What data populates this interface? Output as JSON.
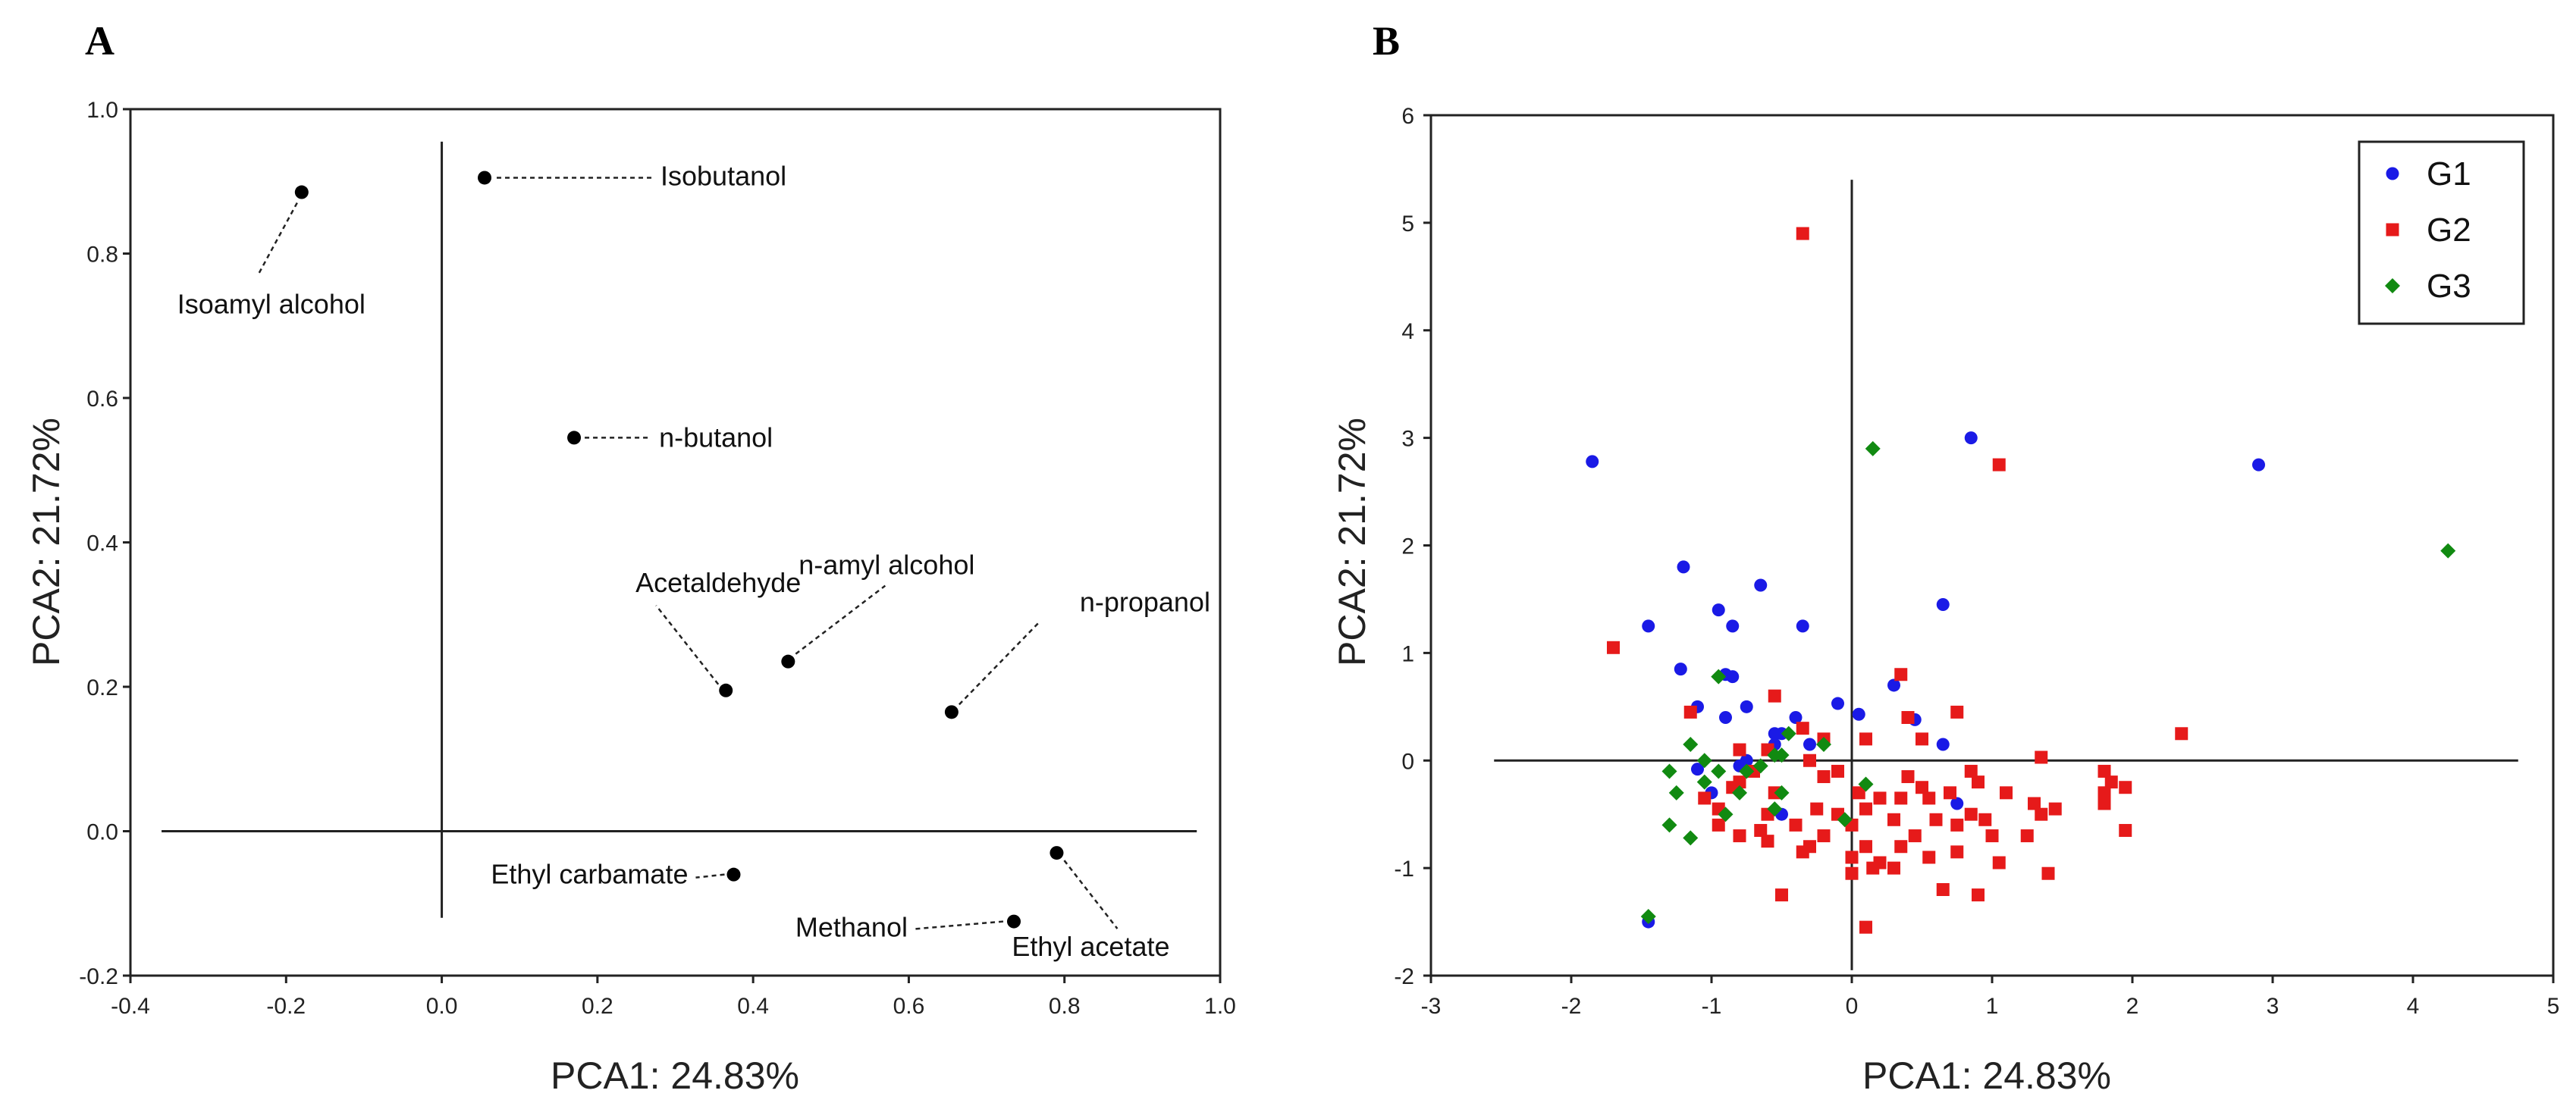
{
  "chart_data": [
    {
      "type": "scatter",
      "panel": "A",
      "xlabel": "PCA1: 24.83%",
      "ylabel": "PCA2: 21.72%",
      "xlim": [
        -0.4,
        1.0
      ],
      "ylim": [
        -0.2,
        1.0
      ],
      "xticks": [
        "-0.4",
        "-0.2",
        "0.0",
        "0.2",
        "0.4",
        "0.6",
        "0.8",
        "1.0"
      ],
      "yticks": [
        "-0.2",
        "0.0",
        "0.2",
        "0.4",
        "0.6",
        "0.8",
        "1.0"
      ],
      "points": [
        {
          "label": "Isoamyl alcohol",
          "x": -0.18,
          "y": 0.885
        },
        {
          "label": "Isobutanol",
          "x": 0.055,
          "y": 0.905
        },
        {
          "label": "n-butanol",
          "x": 0.17,
          "y": 0.545
        },
        {
          "label": "Acetaldehyde",
          "x": 0.365,
          "y": 0.195
        },
        {
          "label": "n-amyl alcohol",
          "x": 0.445,
          "y": 0.235
        },
        {
          "label": "n-propanol",
          "x": 0.655,
          "y": 0.165
        },
        {
          "label": "Ethyl carbamate",
          "x": 0.375,
          "y": -0.06
        },
        {
          "label": "Ethyl acetate",
          "x": 0.79,
          "y": -0.03
        },
        {
          "label": "Methanol",
          "x": 0.735,
          "y": -0.125
        }
      ]
    },
    {
      "type": "scatter",
      "panel": "B",
      "xlabel": "PCA1: 24.83%",
      "ylabel": "PCA2: 21.72%",
      "xlim": [
        -3,
        5
      ],
      "ylim": [
        -2,
        6
      ],
      "xticks": [
        "-3",
        "-2",
        "-1",
        "0",
        "1",
        "2",
        "3",
        "4",
        "5"
      ],
      "yticks": [
        "-2",
        "-1",
        "0",
        "1",
        "2",
        "3",
        "4",
        "5",
        "6"
      ],
      "legend_position": "top-right",
      "series": [
        {
          "name": "G1",
          "color": "#1a1ae6",
          "marker": "circle",
          "points": [
            [
              -1.85,
              2.78
            ],
            [
              -1.45,
              1.25
            ],
            [
              -1.2,
              1.8
            ],
            [
              -0.95,
              1.4
            ],
            [
              -0.65,
              1.63
            ],
            [
              -0.85,
              1.25
            ],
            [
              -1.22,
              0.85
            ],
            [
              -1.1,
              0.5
            ],
            [
              -0.9,
              0.8
            ],
            [
              -0.85,
              0.78
            ],
            [
              -0.35,
              1.25
            ],
            [
              -0.75,
              0.5
            ],
            [
              -0.9,
              0.4
            ],
            [
              -0.55,
              0.25
            ],
            [
              -0.5,
              0.25
            ],
            [
              -0.4,
              0.4
            ],
            [
              -0.1,
              0.53
            ],
            [
              0.05,
              0.43
            ],
            [
              -0.3,
              0.15
            ],
            [
              -0.75,
              0.0
            ],
            [
              -1.0,
              -0.3
            ],
            [
              -1.1,
              -0.08
            ],
            [
              -0.5,
              -0.5
            ],
            [
              0.3,
              0.7
            ],
            [
              0.45,
              0.38
            ],
            [
              0.65,
              1.45
            ],
            [
              0.65,
              0.15
            ],
            [
              0.85,
              3.0
            ],
            [
              0.75,
              -0.4
            ],
            [
              2.9,
              2.75
            ],
            [
              -1.45,
              -1.5
            ],
            [
              -0.55,
              0.15
            ],
            [
              -0.8,
              -0.05
            ]
          ]
        },
        {
          "name": "G2",
          "color": "#e61a1a",
          "marker": "square",
          "points": [
            [
              -0.35,
              4.9
            ],
            [
              1.05,
              2.75
            ],
            [
              -1.7,
              1.05
            ],
            [
              -0.55,
              0.6
            ],
            [
              0.35,
              0.8
            ],
            [
              0.75,
              0.45
            ],
            [
              2.35,
              0.25
            ],
            [
              -1.15,
              0.45
            ],
            [
              -0.35,
              0.3
            ],
            [
              -0.2,
              0.2
            ],
            [
              0.1,
              0.2
            ],
            [
              0.4,
              0.4
            ],
            [
              0.5,
              0.2
            ],
            [
              -0.8,
              0.1
            ],
            [
              -0.6,
              0.1
            ],
            [
              -0.3,
              0.0
            ],
            [
              1.35,
              0.03
            ],
            [
              -1.05,
              -0.35
            ],
            [
              -0.95,
              -0.45
            ],
            [
              -0.8,
              -0.2
            ],
            [
              -0.7,
              -0.1
            ],
            [
              -0.55,
              -0.3
            ],
            [
              -0.2,
              -0.15
            ],
            [
              -0.1,
              -0.1
            ],
            [
              0.05,
              -0.3
            ],
            [
              0.2,
              -0.35
            ],
            [
              0.35,
              -0.35
            ],
            [
              0.5,
              -0.25
            ],
            [
              0.7,
              -0.3
            ],
            [
              0.85,
              -0.1
            ],
            [
              0.9,
              -0.2
            ],
            [
              1.1,
              -0.3
            ],
            [
              1.3,
              -0.4
            ],
            [
              1.35,
              -0.5
            ],
            [
              1.8,
              -0.1
            ],
            [
              1.85,
              -0.2
            ],
            [
              1.8,
              -0.3
            ],
            [
              1.8,
              -0.4
            ],
            [
              1.95,
              -0.25
            ],
            [
              -0.95,
              -0.6
            ],
            [
              -0.8,
              -0.7
            ],
            [
              -0.6,
              -0.5
            ],
            [
              -0.4,
              -0.6
            ],
            [
              -0.3,
              -0.8
            ],
            [
              -0.1,
              -0.5
            ],
            [
              0.0,
              -0.6
            ],
            [
              0.1,
              -0.45
            ],
            [
              0.3,
              -0.55
            ],
            [
              0.45,
              -0.7
            ],
            [
              0.6,
              -0.55
            ],
            [
              0.75,
              -0.6
            ],
            [
              0.85,
              -0.5
            ],
            [
              1.0,
              -0.7
            ],
            [
              1.25,
              -0.7
            ],
            [
              1.45,
              -0.45
            ],
            [
              1.95,
              -0.65
            ],
            [
              -0.6,
              -0.75
            ],
            [
              -0.35,
              -0.85
            ],
            [
              -0.2,
              -0.7
            ],
            [
              0.0,
              -0.9
            ],
            [
              0.1,
              -0.8
            ],
            [
              0.2,
              -0.95
            ],
            [
              0.35,
              -0.8
            ],
            [
              0.55,
              -0.9
            ],
            [
              0.75,
              -0.85
            ],
            [
              1.05,
              -0.95
            ],
            [
              1.4,
              -1.05
            ],
            [
              0.0,
              -1.05
            ],
            [
              0.15,
              -1.0
            ],
            [
              0.3,
              -1.0
            ],
            [
              0.65,
              -1.2
            ],
            [
              0.9,
              -1.25
            ],
            [
              -0.5,
              -1.25
            ],
            [
              0.1,
              -1.55
            ],
            [
              -0.85,
              -0.25
            ],
            [
              -0.25,
              -0.45
            ],
            [
              0.55,
              -0.35
            ],
            [
              0.4,
              -0.15
            ],
            [
              0.95,
              -0.55
            ],
            [
              -0.65,
              -0.65
            ]
          ]
        },
        {
          "name": "G3",
          "color": "#118a11",
          "marker": "diamond",
          "points": [
            [
              0.15,
              2.9
            ],
            [
              4.25,
              1.95
            ],
            [
              -0.95,
              0.78
            ],
            [
              -0.45,
              0.25
            ],
            [
              -0.2,
              0.15
            ],
            [
              -0.55,
              0.05
            ],
            [
              -1.15,
              0.15
            ],
            [
              -1.05,
              0.0
            ],
            [
              -0.95,
              -0.1
            ],
            [
              -0.65,
              -0.05
            ],
            [
              -0.5,
              0.05
            ],
            [
              -1.3,
              -0.1
            ],
            [
              -1.25,
              -0.3
            ],
            [
              -1.05,
              -0.2
            ],
            [
              -0.8,
              -0.3
            ],
            [
              -0.9,
              -0.5
            ],
            [
              -0.5,
              -0.3
            ],
            [
              -1.3,
              -0.6
            ],
            [
              -1.15,
              -0.72
            ],
            [
              -0.05,
              -0.55
            ],
            [
              0.1,
              -0.22
            ],
            [
              -1.45,
              -1.45
            ],
            [
              -0.75,
              -0.1
            ],
            [
              -0.55,
              -0.45
            ]
          ]
        }
      ]
    }
  ]
}
